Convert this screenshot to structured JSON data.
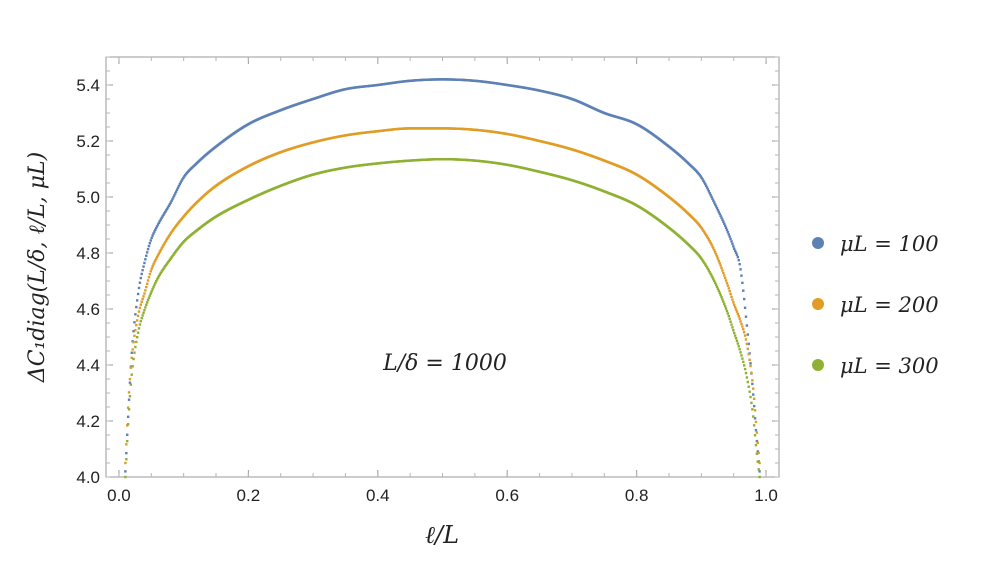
{
  "chart_data": {
    "type": "scatter",
    "xlabel": "ℓ/L",
    "ylabel": "ΔC₁diag(L/δ, ℓ/L, μL)",
    "xlim": [
      -0.02,
      1.02
    ],
    "ylim": [
      4.0,
      5.5
    ],
    "x_ticks": [
      "0.0",
      "0.2",
      "0.4",
      "0.6",
      "0.8",
      "1.0"
    ],
    "y_ticks": [
      "4.0",
      "4.2",
      "4.4",
      "4.6",
      "4.8",
      "5.0",
      "5.2",
      "5.4"
    ],
    "annotation": "L/δ = 1000",
    "legend_position": "right",
    "grid": false,
    "series": [
      {
        "name": "μL = 100",
        "color": "#5e81b5",
        "x": [
          0.01,
          0.015,
          0.02,
          0.03,
          0.04,
          0.05,
          0.06,
          0.08,
          0.1,
          0.12,
          0.15,
          0.2,
          0.25,
          0.3,
          0.35,
          0.4,
          0.45,
          0.5,
          0.55,
          0.6,
          0.65,
          0.7,
          0.75,
          0.8,
          0.85,
          0.88,
          0.9,
          0.92,
          0.94,
          0.95,
          0.96,
          0.97,
          0.98,
          0.985,
          0.99
        ],
        "y": [
          4.02,
          4.25,
          4.45,
          4.66,
          4.77,
          4.85,
          4.9,
          4.98,
          5.07,
          5.12,
          5.18,
          5.26,
          5.31,
          5.35,
          5.385,
          5.4,
          5.415,
          5.42,
          5.415,
          5.4,
          5.38,
          5.35,
          5.3,
          5.26,
          5.18,
          5.12,
          5.07,
          4.98,
          4.88,
          4.82,
          4.75,
          4.55,
          4.3,
          4.15,
          4.02
        ]
      },
      {
        "name": "μL = 200",
        "color": "#e19c24",
        "x": [
          0.01,
          0.015,
          0.02,
          0.03,
          0.04,
          0.05,
          0.06,
          0.08,
          0.1,
          0.12,
          0.15,
          0.2,
          0.25,
          0.3,
          0.35,
          0.4,
          0.45,
          0.5,
          0.55,
          0.6,
          0.65,
          0.7,
          0.75,
          0.8,
          0.85,
          0.88,
          0.9,
          0.92,
          0.94,
          0.95,
          0.96,
          0.97,
          0.98,
          0.985,
          0.99
        ],
        "y": [
          4.05,
          4.28,
          4.43,
          4.58,
          4.66,
          4.74,
          4.79,
          4.87,
          4.93,
          4.98,
          5.04,
          5.11,
          5.16,
          5.195,
          5.22,
          5.235,
          5.245,
          5.245,
          5.24,
          5.225,
          5.2,
          5.17,
          5.13,
          5.08,
          5.0,
          4.94,
          4.89,
          4.81,
          4.69,
          4.62,
          4.56,
          4.48,
          4.32,
          4.18,
          4.05
        ]
      },
      {
        "name": "μL = 300",
        "color": "#8fb032",
        "x": [
          0.01,
          0.015,
          0.02,
          0.03,
          0.04,
          0.05,
          0.06,
          0.08,
          0.1,
          0.12,
          0.15,
          0.2,
          0.25,
          0.3,
          0.35,
          0.4,
          0.45,
          0.5,
          0.55,
          0.6,
          0.65,
          0.7,
          0.75,
          0.8,
          0.85,
          0.88,
          0.9,
          0.92,
          0.94,
          0.95,
          0.96,
          0.97,
          0.98,
          0.985,
          0.99
        ],
        "y": [
          4.0,
          4.22,
          4.37,
          4.52,
          4.6,
          4.66,
          4.71,
          4.78,
          4.84,
          4.88,
          4.93,
          4.99,
          5.04,
          5.08,
          5.105,
          5.12,
          5.13,
          5.135,
          5.13,
          5.115,
          5.09,
          5.06,
          5.02,
          4.97,
          4.89,
          4.83,
          4.78,
          4.7,
          4.59,
          4.52,
          4.45,
          4.36,
          4.22,
          4.1,
          4.0
        ]
      }
    ]
  }
}
